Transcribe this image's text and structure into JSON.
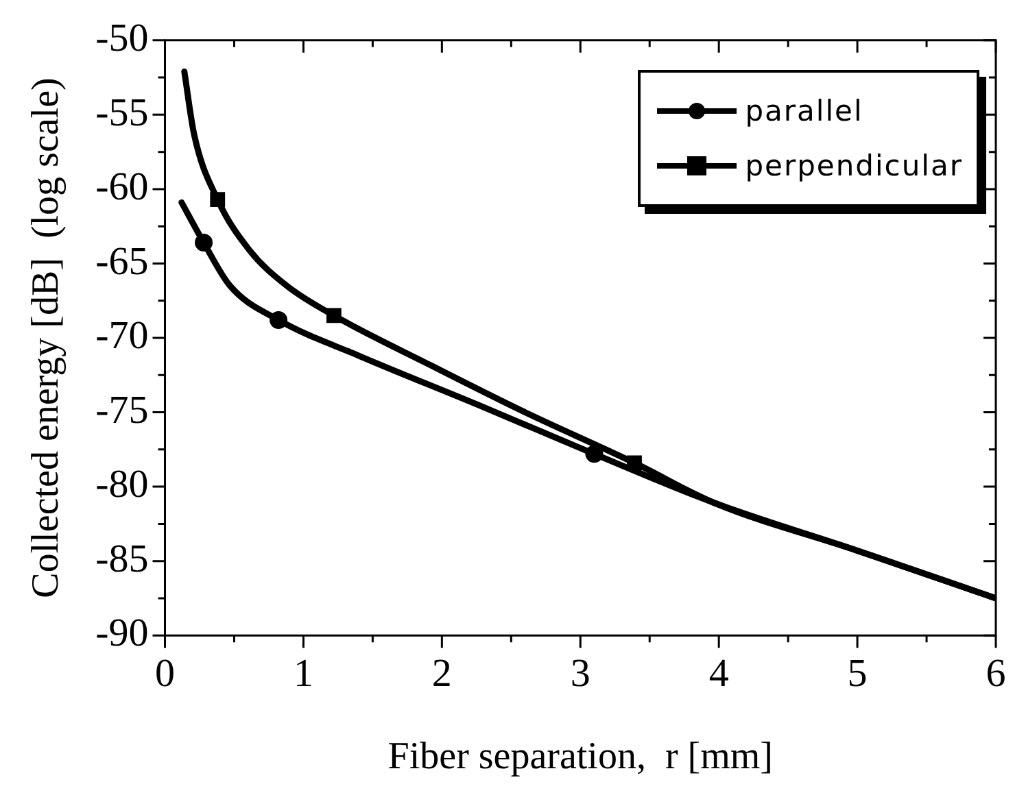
{
  "chart_data": {
    "type": "line",
    "xlabel": "Fiber separation,  r [mm]",
    "ylabel": "Collected energy [dB]  (log scale)",
    "xlim": [
      0,
      6
    ],
    "ylim": [
      -90,
      -50
    ],
    "xticks": [
      0,
      {
        "value": 0.5,
        "label": null
      },
      1,
      {
        "value": 1.5,
        "label": null
      },
      2,
      {
        "value": 2.5,
        "label": null
      },
      3,
      {
        "value": 3.5,
        "label": null
      },
      4,
      {
        "value": 4.5,
        "label": null
      },
      5,
      {
        "value": 5.5,
        "label": null
      },
      6
    ],
    "yticks": [
      -90,
      {
        "value": -87.5,
        "label": null
      },
      -85,
      {
        "value": -82.5,
        "label": null
      },
      -80,
      {
        "value": -77.5,
        "label": null
      },
      -75,
      {
        "value": -72.5,
        "label": null
      },
      -70,
      {
        "value": -67.5,
        "label": null
      },
      -65,
      {
        "value": -62.5,
        "label": null
      },
      -60,
      {
        "value": -57.5,
        "label": null
      },
      -55,
      {
        "value": -52.5,
        "label": null
      },
      -50
    ],
    "grid": false,
    "legend": "top right",
    "line_style": "solid",
    "series": [
      {
        "name": "parallel",
        "color": "#000000",
        "marker": "none",
        "x": [
          0.12,
          0.28,
          0.47,
          0.82,
          1.4,
          2.26,
          3.1,
          3.97,
          5,
          6
        ],
        "values": [
          -60.9,
          -63.6,
          -66.5,
          -68.8,
          -71.2,
          -74.5,
          -77.8,
          -81.1,
          -84.3,
          -87.5
        ]
      },
      {
        "color": "#000000",
        "type": "scatter",
        "marker": "circle",
        "x": [
          0.28,
          0.82,
          3.1
        ],
        "values": [
          -63.6,
          -68.8,
          -77.8
        ]
      },
      {
        "name": "perpendicular",
        "color": "#000000",
        "marker": "none",
        "x": [
          0.14,
          0.21,
          0.38,
          0.61,
          0.88,
          1.22,
          1.91,
          2.6,
          3.39,
          3.97,
          5,
          6
        ],
        "values": [
          -52.1,
          -56.3,
          -60.7,
          -64.1,
          -66.5,
          -68.5,
          -71.8,
          -75.0,
          -78.4,
          -81.1,
          -84.3,
          -87.5
        ]
      },
      {
        "color": "#000000",
        "type": "scatter",
        "marker": "square",
        "x": [
          0.38,
          1.22,
          3.39
        ],
        "values": [
          -60.7,
          -68.5,
          -78.4
        ]
      }
    ]
  }
}
